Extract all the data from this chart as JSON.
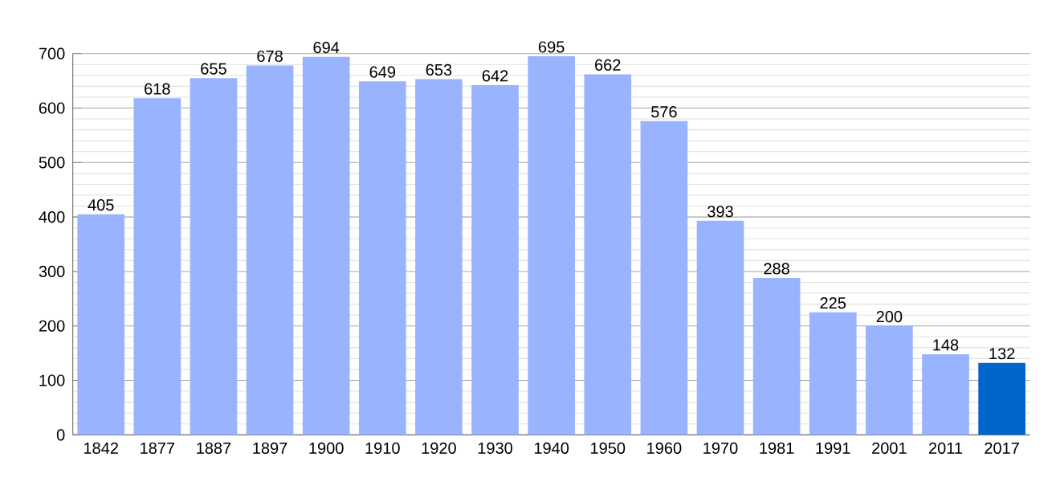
{
  "chart_data": {
    "type": "bar",
    "categories": [
      "1842",
      "1877",
      "1887",
      "1897",
      "1900",
      "1910",
      "1920",
      "1930",
      "1940",
      "1950",
      "1960",
      "1970",
      "1981",
      "1991",
      "2001",
      "2011",
      "2017"
    ],
    "values": [
      405,
      618,
      655,
      678,
      694,
      649,
      653,
      642,
      695,
      662,
      576,
      393,
      288,
      225,
      200,
      148,
      132
    ],
    "colors": [
      "#99b3ff",
      "#99b3ff",
      "#99b3ff",
      "#99b3ff",
      "#99b3ff",
      "#99b3ff",
      "#99b3ff",
      "#99b3ff",
      "#99b3ff",
      "#99b3ff",
      "#99b3ff",
      "#99b3ff",
      "#99b3ff",
      "#99b3ff",
      "#99b3ff",
      "#99b3ff",
      "#0066cc"
    ],
    "data_labels": true,
    "ylim": [
      0,
      700
    ],
    "yticks": [
      0,
      {
        "value": 20,
        "label": null
      },
      {
        "value": 40,
        "label": null
      },
      {
        "value": 60,
        "label": null
      },
      {
        "value": 80,
        "label": null
      },
      100,
      {
        "value": 120,
        "label": null
      },
      {
        "value": 140,
        "label": null
      },
      {
        "value": 160,
        "label": null
      },
      {
        "value": 180,
        "label": null
      },
      200,
      {
        "value": 220,
        "label": null
      },
      {
        "value": 240,
        "label": null
      },
      {
        "value": 260,
        "label": null
      },
      {
        "value": 280,
        "label": null
      },
      300,
      {
        "value": 320,
        "label": null
      },
      {
        "value": 340,
        "label": null
      },
      {
        "value": 360,
        "label": null
      },
      {
        "value": 380,
        "label": null
      },
      400,
      {
        "value": 420,
        "label": null
      },
      {
        "value": 440,
        "label": null
      },
      {
        "value": 460,
        "label": null
      },
      {
        "value": 480,
        "label": null
      },
      500,
      {
        "value": 520,
        "label": null
      },
      {
        "value": 540,
        "label": null
      },
      {
        "value": 560,
        "label": null
      },
      {
        "value": 580,
        "label": null
      },
      600,
      {
        "value": 620,
        "label": null
      },
      {
        "value": 640,
        "label": null
      },
      {
        "value": 660,
        "label": null
      },
      {
        "value": 680,
        "label": null
      },
      700
    ],
    "grid": "y"
  }
}
